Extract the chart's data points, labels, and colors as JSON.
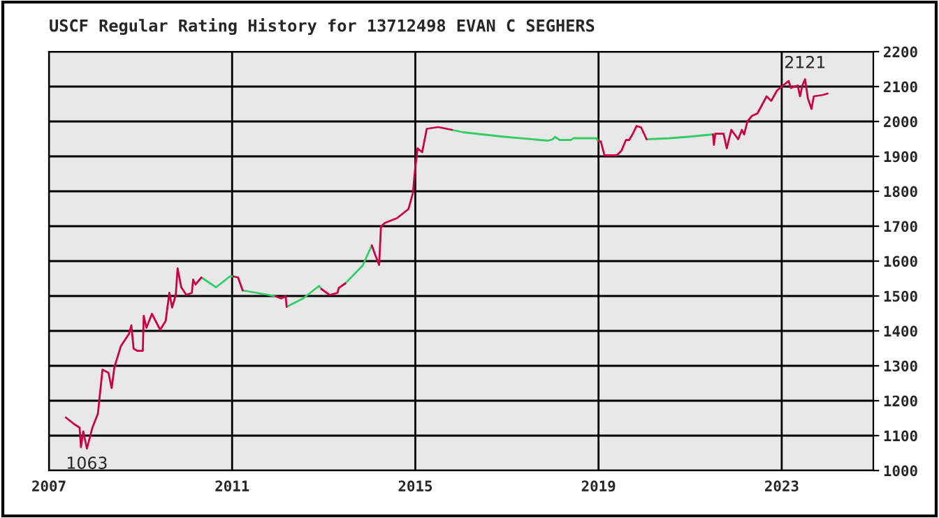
{
  "chart_data": {
    "type": "line",
    "title": "USCF Regular Rating History for 13712498 EVAN C SEGHERS",
    "xlim": [
      2007,
      2025
    ],
    "xticks": [
      2007,
      2011,
      2015,
      2019,
      2023
    ],
    "ylim": [
      1000,
      2200
    ],
    "yticks": [
      1000,
      1100,
      1200,
      1300,
      1400,
      1500,
      1600,
      1700,
      1800,
      1900,
      2000,
      2100,
      2200
    ],
    "grid": true,
    "marker": "none",
    "line_style": "solid",
    "annotations": [
      {
        "text": "1063",
        "x": 2007.83,
        "y": 1063
      },
      {
        "text": "2121",
        "x": 2023.51,
        "y": 2121
      }
    ],
    "series": [
      {
        "color": "#cc0044",
        "x": [
          2007.37,
          2007.55,
          2007.67,
          2007.7,
          2007.75,
          2007.83,
          2007.95,
          2008.07,
          2008.17,
          2008.3,
          2008.37,
          2008.43,
          2008.57,
          2008.75,
          2008.8,
          2008.85,
          2008.93,
          2009.05,
          2009.07,
          2009.13,
          2009.25,
          2009.43,
          2009.55,
          2009.63,
          2009.69,
          2009.77,
          2009.81,
          2009.89,
          2010.0,
          2010.12,
          2010.15,
          2010.2,
          2010.33,
          2010.7,
          2011.03,
          2011.13,
          2011.23,
          2011.6,
          2011.95,
          2012.07,
          2012.17,
          2012.19,
          2012.6,
          2012.95,
          2013.13,
          2013.3,
          2013.33,
          2013.47,
          2013.8,
          2014.05,
          2014.13,
          2014.21,
          2014.25,
          2014.33,
          2014.6,
          2014.85,
          2014.95,
          2014.97,
          2015.0,
          2015.05,
          2015.15,
          2015.25,
          2015.5,
          2015.8,
          2016.9,
          2019.0,
          2019.05,
          2019.13,
          2019.4,
          2019.5,
          2019.6,
          2019.67,
          2019.75,
          2019.83,
          2019.93,
          2020.05,
          2020.8,
          2021.5,
          2021.52,
          2021.55,
          2021.73,
          2021.8,
          2021.9,
          2022.05,
          2022.13,
          2022.18,
          2022.25,
          2022.35,
          2022.47,
          2022.67,
          2022.77,
          2022.9,
          2023.03,
          2023.15,
          2023.2,
          2023.35,
          2023.4,
          2023.45,
          2023.51,
          2023.57,
          2023.65,
          2023.7,
          2023.9,
          2024.0
        ],
        "values": [
          1152,
          1133,
          1123,
          1067,
          1112,
          1063,
          1123,
          1163,
          1289,
          1280,
          1236,
          1296,
          1356,
          1392,
          1416,
          1349,
          1343,
          1343,
          1443,
          1409,
          1449,
          1403,
          1429,
          1509,
          1467,
          1503,
          1579,
          1525,
          1503,
          1509,
          1547,
          1533,
          1553,
          null,
          1556,
          1553,
          1516,
          null,
          1499,
          1493,
          1499,
          1469,
          null,
          1520,
          1503,
          1509,
          1523,
          1536,
          null,
          1645,
          1616,
          1589,
          1699,
          1709,
          1723,
          1749,
          1796,
          1829,
          1869,
          1923,
          1912,
          1979,
          1984,
          1976,
          null,
          1943,
          1943,
          1903,
          1903,
          1916,
          1947,
          1947,
          1965,
          1987,
          1983,
          1949,
          null,
          1963,
          1933,
          1965,
          1965,
          1923,
          1976,
          1949,
          1976,
          1963,
          2000,
          2016,
          2023,
          2072,
          2059,
          2089,
          2103,
          2116,
          2096,
          2103,
          2072,
          2103,
          2121,
          2067,
          2036,
          2072,
          2076,
          2080
        ]
      },
      {
        "color": "#33cc66",
        "x": [
          2010.33,
          2010.65,
          2010.95,
          2011.03,
          2011.1,
          2011.23,
          2011.8,
          2011.95,
          2012.1,
          2012.19,
          2012.55,
          2012.9,
          2012.95,
          2013.2,
          2013.47,
          2013.85,
          2014.05,
          2014.5,
          2015.8,
          2016.05,
          2016.95,
          2017.9,
          2018.0,
          2018.05,
          2018.15,
          2018.4,
          2018.45,
          2018.95,
          2019.0,
          2019.5,
          2020.05,
          2020.55,
          2020.95,
          2021.5
        ],
        "values": [
          1553,
          1525,
          1556,
          1556,
          null,
          1516,
          1503,
          1499,
          null,
          1469,
          1493,
          1529,
          1520,
          null,
          1536,
          1587,
          1645,
          null,
          1976,
          1969,
          1956,
          1945,
          1949,
          1956,
          1947,
          1947,
          1952,
          1952,
          1943,
          null,
          1949,
          1952,
          1956,
          1963
        ]
      }
    ]
  }
}
